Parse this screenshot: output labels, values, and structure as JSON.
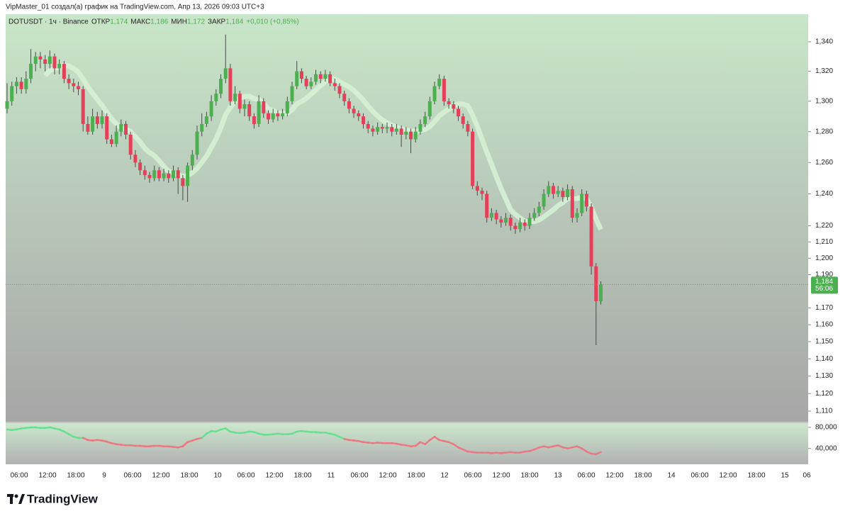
{
  "header": {
    "attribution": "VipMaster_01 создал(а) график на TradingView.com, Апр 13, 2026 09:03 UTC+3"
  },
  "chart_data": [
    {
      "type": "candlestick",
      "symbol": "DOTUSDT · 1ч · Binance",
      "legend": [
        {
          "label": "ОТКР",
          "value": "1,174"
        },
        {
          "label": "МАКС",
          "value": "1,186"
        },
        {
          "label": "МИН",
          "value": "1,172"
        },
        {
          "label": "ЗАКР",
          "value": "1,184"
        }
      ],
      "change": "+0,010 (+0,85%)",
      "up_color": "#4caf50",
      "down_color": "#e5405a",
      "log_scale": true,
      "ylim": [
        1.104,
        1.359
      ],
      "yticks": [
        {
          "value": 1.34,
          "label": "1,340"
        },
        {
          "value": 1.32,
          "label": "1,320"
        },
        {
          "value": 1.3,
          "label": "1,300"
        },
        {
          "value": 1.28,
          "label": "1,280"
        },
        {
          "value": 1.26,
          "label": "1,260"
        },
        {
          "value": 1.24,
          "label": "1,240"
        },
        {
          "value": 1.22,
          "label": "1,220"
        },
        {
          "value": 1.21,
          "label": "1,210"
        },
        {
          "value": 1.2,
          "label": "1,200"
        },
        {
          "value": 1.19,
          "label": "1,190"
        },
        {
          "value": 1.17,
          "label": "1,170"
        },
        {
          "value": 1.16,
          "label": "1,160"
        },
        {
          "value": 1.15,
          "label": "1,150"
        },
        {
          "value": 1.14,
          "label": "1,140"
        },
        {
          "value": 1.13,
          "label": "1,130"
        },
        {
          "value": 1.12,
          "label": "1,120"
        },
        {
          "value": 1.11,
          "label": "1,110"
        }
      ],
      "last_label": "1,184",
      "countdown": "56:06",
      "x_labels": [
        "06:00",
        "12:00",
        "18:00",
        "9",
        "06:00",
        "12:00",
        "18:00",
        "10",
        "06:00",
        "12:00",
        "18:00",
        "11",
        "06:00",
        "12:00",
        "18:00",
        "12",
        "06:00",
        "12:00",
        "18:00",
        "13",
        "06:00",
        "12:00",
        "18:00",
        "14",
        "06:00",
        "12:00",
        "18:00",
        "15",
        "06"
      ],
      "ohlc": [
        [
          1.295,
          1.312,
          1.292,
          1.3
        ],
        [
          1.3,
          1.313,
          1.297,
          1.31
        ],
        [
          1.31,
          1.316,
          1.305,
          1.313
        ],
        [
          1.313,
          1.316,
          1.305,
          1.308
        ],
        [
          1.308,
          1.32,
          1.305,
          1.315
        ],
        [
          1.315,
          1.335,
          1.312,
          1.325
        ],
        [
          1.325,
          1.333,
          1.32,
          1.33
        ],
        [
          1.33,
          1.333,
          1.322,
          1.328
        ],
        [
          1.328,
          1.331,
          1.32,
          1.325
        ],
        [
          1.325,
          1.334,
          1.322,
          1.33
        ],
        [
          1.33,
          1.332,
          1.318,
          1.322
        ],
        [
          1.322,
          1.328,
          1.318,
          1.325
        ],
        [
          1.325,
          1.327,
          1.312,
          1.315
        ],
        [
          1.315,
          1.318,
          1.308,
          1.312
        ],
        [
          1.312,
          1.315,
          1.306,
          1.31
        ],
        [
          1.31,
          1.313,
          1.304,
          1.308
        ],
        [
          1.308,
          1.31,
          1.28,
          1.285
        ],
        [
          1.285,
          1.29,
          1.278,
          1.28
        ],
        [
          1.28,
          1.295,
          1.278,
          1.29
        ],
        [
          1.29,
          1.293,
          1.282,
          1.285
        ],
        [
          1.285,
          1.294,
          1.282,
          1.29
        ],
        [
          1.29,
          1.292,
          1.272,
          1.275
        ],
        [
          1.275,
          1.278,
          1.27,
          1.272
        ],
        [
          1.272,
          1.284,
          1.27,
          1.28
        ],
        [
          1.28,
          1.288,
          1.277,
          1.285
        ],
        [
          1.285,
          1.287,
          1.275,
          1.278
        ],
        [
          1.278,
          1.28,
          1.262,
          1.265
        ],
        [
          1.265,
          1.268,
          1.257,
          1.26
        ],
        [
          1.26,
          1.262,
          1.252,
          1.255
        ],
        [
          1.255,
          1.258,
          1.249,
          1.252
        ],
        [
          1.252,
          1.254,
          1.247,
          1.25
        ],
        [
          1.25,
          1.258,
          1.248,
          1.255
        ],
        [
          1.255,
          1.257,
          1.248,
          1.25
        ],
        [
          1.25,
          1.256,
          1.248,
          1.253
        ],
        [
          1.253,
          1.255,
          1.247,
          1.25
        ],
        [
          1.25,
          1.258,
          1.248,
          1.255
        ],
        [
          1.255,
          1.257,
          1.24,
          1.25
        ],
        [
          1.25,
          1.252,
          1.236,
          1.245
        ],
        [
          1.245,
          1.26,
          1.235,
          1.258
        ],
        [
          1.258,
          1.268,
          1.255,
          1.265
        ],
        [
          1.265,
          1.284,
          1.262,
          1.28
        ],
        [
          1.28,
          1.292,
          1.277,
          1.285
        ],
        [
          1.285,
          1.293,
          1.283,
          1.29
        ],
        [
          1.29,
          1.304,
          1.287,
          1.3
        ],
        [
          1.3,
          1.308,
          1.297,
          1.305
        ],
        [
          1.305,
          1.318,
          1.302,
          1.315
        ],
        [
          1.315,
          1.345,
          1.312,
          1.322
        ],
        [
          1.322,
          1.325,
          1.297,
          1.3
        ],
        [
          1.3,
          1.31,
          1.298,
          1.305
        ],
        [
          1.305,
          1.307,
          1.292,
          1.295
        ],
        [
          1.295,
          1.301,
          1.29,
          1.298
        ],
        [
          1.298,
          1.3,
          1.287,
          1.29
        ],
        [
          1.29,
          1.292,
          1.282,
          1.285
        ],
        [
          1.285,
          1.304,
          1.283,
          1.3
        ],
        [
          1.3,
          1.302,
          1.289,
          1.292
        ],
        [
          1.292,
          1.294,
          1.285,
          1.288
        ],
        [
          1.288,
          1.295,
          1.286,
          1.292
        ],
        [
          1.292,
          1.294,
          1.287,
          1.29
        ],
        [
          1.29,
          1.295,
          1.288,
          1.292
        ],
        [
          1.292,
          1.303,
          1.29,
          1.3
        ],
        [
          1.3,
          1.313,
          1.298,
          1.31
        ],
        [
          1.31,
          1.327,
          1.308,
          1.32
        ],
        [
          1.32,
          1.322,
          1.312,
          1.315
        ],
        [
          1.315,
          1.317,
          1.308,
          1.31
        ],
        [
          1.31,
          1.316,
          1.308,
          1.313
        ],
        [
          1.313,
          1.321,
          1.311,
          1.318
        ],
        [
          1.318,
          1.32,
          1.312,
          1.315
        ],
        [
          1.315,
          1.321,
          1.313,
          1.318
        ],
        [
          1.318,
          1.32,
          1.31,
          1.312
        ],
        [
          1.312,
          1.315,
          1.307,
          1.31
        ],
        [
          1.31,
          1.312,
          1.302,
          1.305
        ],
        [
          1.305,
          1.307,
          1.297,
          1.3
        ],
        [
          1.3,
          1.302,
          1.292,
          1.295
        ],
        [
          1.295,
          1.297,
          1.289,
          1.292
        ],
        [
          1.292,
          1.294,
          1.287,
          1.29
        ],
        [
          1.29,
          1.292,
          1.282,
          1.285
        ],
        [
          1.285,
          1.287,
          1.279,
          1.282
        ],
        [
          1.282,
          1.284,
          1.277,
          1.28
        ],
        [
          1.28,
          1.286,
          1.278,
          1.283
        ],
        [
          1.283,
          1.285,
          1.279,
          1.282
        ],
        [
          1.282,
          1.286,
          1.279,
          1.283
        ],
        [
          1.283,
          1.285,
          1.277,
          1.28
        ],
        [
          1.28,
          1.285,
          1.278,
          1.282
        ],
        [
          1.282,
          1.284,
          1.27,
          1.278
        ],
        [
          1.278,
          1.283,
          1.275,
          1.28
        ],
        [
          1.28,
          1.282,
          1.266,
          1.275
        ],
        [
          1.275,
          1.283,
          1.273,
          1.28
        ],
        [
          1.28,
          1.288,
          1.278,
          1.285
        ],
        [
          1.285,
          1.293,
          1.283,
          1.29
        ],
        [
          1.29,
          1.303,
          1.288,
          1.3
        ],
        [
          1.3,
          1.313,
          1.298,
          1.31
        ],
        [
          1.31,
          1.318,
          1.308,
          1.315
        ],
        [
          1.315,
          1.317,
          1.297,
          1.3
        ],
        [
          1.3,
          1.302,
          1.295,
          1.298
        ],
        [
          1.298,
          1.3,
          1.292,
          1.295
        ],
        [
          1.295,
          1.297,
          1.287,
          1.29
        ],
        [
          1.29,
          1.292,
          1.282,
          1.285
        ],
        [
          1.285,
          1.287,
          1.277,
          1.28
        ],
        [
          1.28,
          1.282,
          1.243,
          1.245
        ],
        [
          1.245,
          1.248,
          1.239,
          1.242
        ],
        [
          1.242,
          1.244,
          1.236,
          1.24
        ],
        [
          1.24,
          1.242,
          1.222,
          1.225
        ],
        [
          1.225,
          1.231,
          1.223,
          1.228
        ],
        [
          1.228,
          1.23,
          1.221,
          1.224
        ],
        [
          1.224,
          1.226,
          1.219,
          1.222
        ],
        [
          1.222,
          1.228,
          1.22,
          1.225
        ],
        [
          1.225,
          1.227,
          1.217,
          1.22
        ],
        [
          1.22,
          1.222,
          1.215,
          1.218
        ],
        [
          1.218,
          1.225,
          1.216,
          1.222
        ],
        [
          1.222,
          1.224,
          1.217,
          1.22
        ],
        [
          1.22,
          1.228,
          1.218,
          1.225
        ],
        [
          1.225,
          1.231,
          1.223,
          1.228
        ],
        [
          1.228,
          1.235,
          1.226,
          1.232
        ],
        [
          1.232,
          1.243,
          1.23,
          1.24
        ],
        [
          1.24,
          1.248,
          1.238,
          1.245
        ],
        [
          1.245,
          1.247,
          1.237,
          1.24
        ],
        [
          1.24,
          1.245,
          1.238,
          1.242
        ],
        [
          1.242,
          1.244,
          1.235,
          1.238
        ],
        [
          1.238,
          1.246,
          1.236,
          1.243
        ],
        [
          1.243,
          1.245,
          1.222,
          1.225
        ],
        [
          1.225,
          1.231,
          1.222,
          1.228
        ],
        [
          1.228,
          1.243,
          1.226,
          1.24
        ],
        [
          1.24,
          1.242,
          1.229,
          1.232
        ],
        [
          1.232,
          1.234,
          1.19,
          1.195
        ],
        [
          1.195,
          1.197,
          1.148,
          1.174
        ],
        [
          1.174,
          1.186,
          1.172,
          1.184
        ]
      ]
    },
    {
      "type": "line",
      "up_color": "#5ee08c",
      "down_color": "#f0707f",
      "ylim": [
        10000,
        88000
      ],
      "yticks": [
        {
          "value": 80000,
          "label": "80,000"
        },
        {
          "value": 40000,
          "label": "40,000"
        }
      ],
      "values": [
        76000,
        75000,
        76000,
        78000,
        79000,
        80000,
        80000,
        79000,
        79000,
        80000,
        78000,
        76000,
        72000,
        67000,
        62000,
        60000,
        60000,
        56000,
        55000,
        56000,
        55000,
        53000,
        50000,
        48000,
        47000,
        46000,
        46000,
        45000,
        45000,
        44000,
        44000,
        45000,
        45000,
        44000,
        44000,
        43000,
        42000,
        44000,
        52000,
        55000,
        58000,
        60000,
        68000,
        73000,
        72000,
        76000,
        78000,
        72000,
        70000,
        69000,
        70000,
        72000,
        71000,
        68000,
        66000,
        66000,
        67000,
        68000,
        67000,
        67000,
        68000,
        72000,
        73000,
        72000,
        71000,
        71000,
        70000,
        70000,
        68000,
        66000,
        62000,
        58000,
        56000,
        55000,
        54000,
        52000,
        51000,
        50000,
        51000,
        50000,
        50000,
        50000,
        49000,
        47000,
        46000,
        44000,
        45000,
        52000,
        48000,
        56000,
        62000,
        56000,
        54000,
        52000,
        48000,
        42000,
        38000,
        34000,
        33000,
        32000,
        32000,
        32000,
        31000,
        32000,
        31000,
        32000,
        33000,
        32000,
        32000,
        34000,
        35000,
        38000,
        42000,
        44000,
        42000,
        44000,
        46000,
        42000,
        40000,
        42000,
        44000,
        40000,
        34000,
        30000,
        29000,
        33000
      ]
    }
  ],
  "logo": "TradingView"
}
